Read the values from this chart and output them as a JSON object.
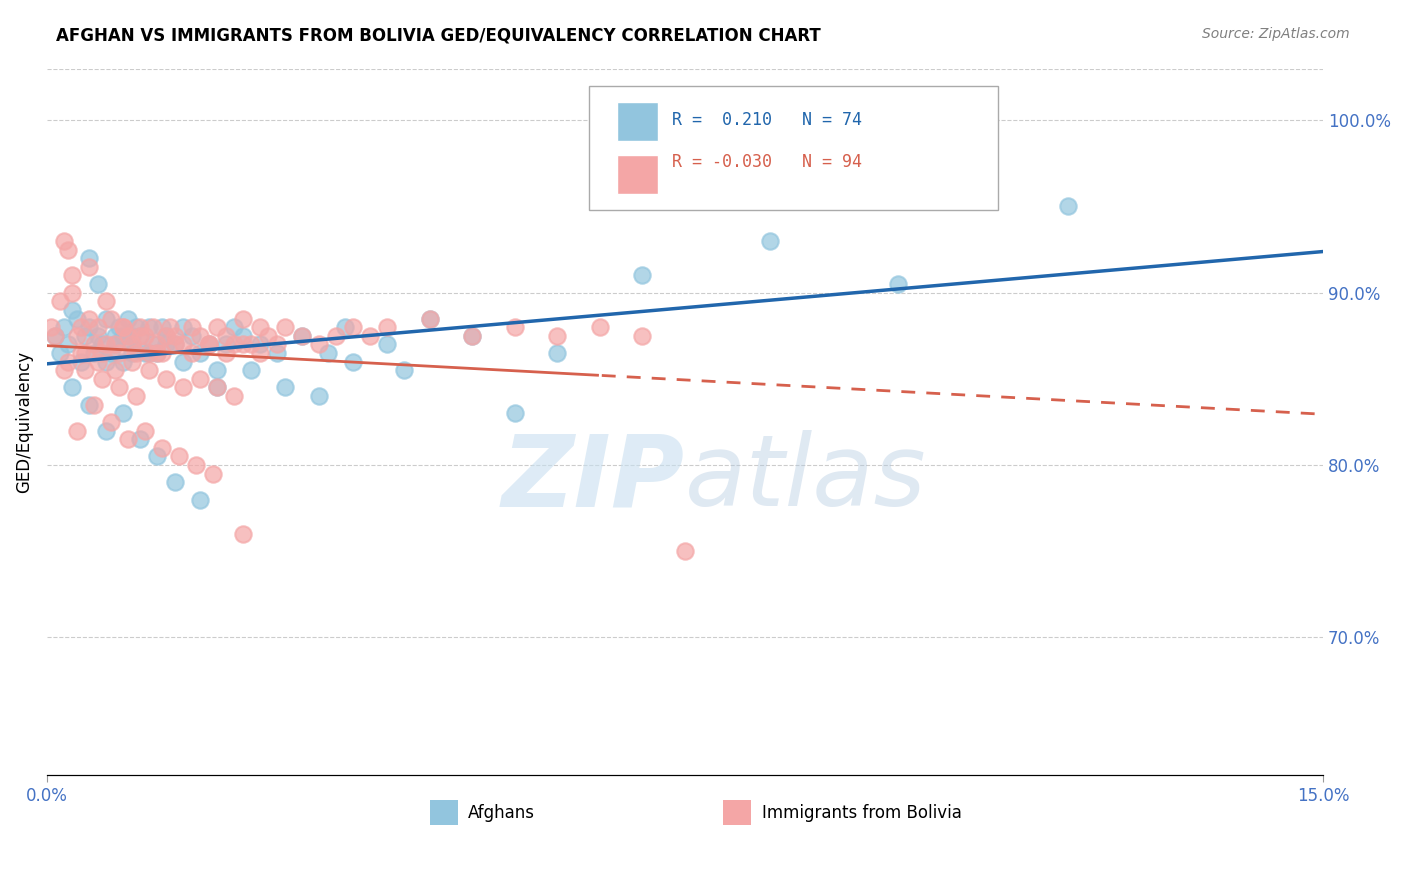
{
  "title": "AFGHAN VS IMMIGRANTS FROM BOLIVIA GED/EQUIVALENCY CORRELATION CHART",
  "source": "Source: ZipAtlas.com",
  "ylabel": "GED/Equivalency",
  "legend_blue_R": "0.210",
  "legend_blue_N": "74",
  "legend_pink_R": "-0.030",
  "legend_pink_N": "94",
  "legend_label_blue": "Afghans",
  "legend_label_pink": "Immigrants from Bolivia",
  "blue_color": "#92c5de",
  "pink_color": "#f4a6a6",
  "blue_line_color": "#2166ac",
  "pink_line_color": "#d6604d",
  "watermark_zip": "ZIP",
  "watermark_atlas": "atlas",
  "xlim": [
    0.0,
    15.0
  ],
  "ylim": [
    62.0,
    103.0
  ],
  "ytick_vals": [
    70,
    80,
    90,
    100
  ],
  "ytick_labels": [
    "70.0%",
    "80.0%",
    "90.0%",
    "100.0%"
  ],
  "blue_scatter_x": [
    0.1,
    0.15,
    0.2,
    0.25,
    0.3,
    0.35,
    0.4,
    0.45,
    0.5,
    0.5,
    0.6,
    0.65,
    0.7,
    0.75,
    0.8,
    0.85,
    0.9,
    0.9,
    0.95,
    1.0,
    1.0,
    1.05,
    1.1,
    1.15,
    1.2,
    1.25,
    1.3,
    1.35,
    1.4,
    1.5,
    1.6,
    1.7,
    1.8,
    1.9,
    2.0,
    2.1,
    2.2,
    2.3,
    2.5,
    2.7,
    3.0,
    3.3,
    3.5,
    4.0,
    4.5,
    5.0,
    6.0,
    7.0,
    8.5,
    10.0,
    12.0,
    0.55,
    0.6,
    0.7,
    0.8,
    1.0,
    1.2,
    1.4,
    1.6,
    2.0,
    2.4,
    2.8,
    3.2,
    3.6,
    4.2,
    5.5,
    0.3,
    0.5,
    0.7,
    0.9,
    1.1,
    1.3,
    1.5,
    1.8
  ],
  "blue_scatter_y": [
    87.5,
    86.5,
    88.0,
    87.0,
    89.0,
    88.5,
    86.0,
    87.5,
    92.0,
    88.0,
    90.5,
    87.0,
    88.5,
    86.5,
    87.5,
    88.0,
    87.5,
    86.0,
    88.5,
    87.0,
    86.5,
    88.0,
    87.5,
    86.5,
    88.0,
    87.0,
    86.5,
    88.0,
    87.5,
    87.0,
    88.0,
    87.5,
    86.5,
    87.0,
    85.5,
    87.0,
    88.0,
    87.5,
    87.0,
    86.5,
    87.5,
    86.5,
    88.0,
    87.0,
    88.5,
    87.5,
    86.5,
    91.0,
    93.0,
    90.5,
    95.0,
    86.5,
    87.5,
    86.0,
    87.0,
    87.5,
    86.5,
    87.0,
    86.0,
    84.5,
    85.5,
    84.5,
    84.0,
    86.0,
    85.5,
    83.0,
    84.5,
    83.5,
    82.0,
    83.0,
    81.5,
    80.5,
    79.0,
    78.0
  ],
  "pink_scatter_x": [
    0.05,
    0.1,
    0.15,
    0.2,
    0.25,
    0.3,
    0.35,
    0.4,
    0.45,
    0.5,
    0.55,
    0.6,
    0.65,
    0.7,
    0.75,
    0.8,
    0.85,
    0.9,
    0.95,
    1.0,
    1.05,
    1.1,
    1.15,
    1.2,
    1.25,
    1.3,
    1.35,
    1.4,
    1.45,
    1.5,
    1.6,
    1.7,
    1.8,
    1.9,
    2.0,
    2.1,
    2.2,
    2.3,
    2.4,
    2.5,
    2.6,
    2.7,
    2.8,
    3.0,
    3.2,
    3.4,
    3.6,
    3.8,
    4.0,
    4.5,
    5.0,
    5.5,
    6.0,
    6.5,
    7.0,
    0.3,
    0.5,
    0.7,
    0.9,
    1.1,
    1.3,
    1.5,
    1.7,
    1.9,
    2.1,
    2.3,
    2.5,
    0.2,
    0.4,
    0.6,
    0.8,
    1.0,
    1.2,
    1.4,
    1.6,
    1.8,
    2.0,
    2.2,
    0.35,
    0.55,
    0.75,
    0.95,
    1.15,
    1.35,
    1.55,
    1.75,
    1.95,
    0.25,
    0.45,
    0.65,
    0.85,
    1.05,
    2.3,
    7.5
  ],
  "pink_scatter_y": [
    88.0,
    87.5,
    89.5,
    93.0,
    92.5,
    91.0,
    87.5,
    88.0,
    86.5,
    88.5,
    87.0,
    88.0,
    86.5,
    87.0,
    88.5,
    87.0,
    86.5,
    88.0,
    87.5,
    87.0,
    86.5,
    88.0,
    87.5,
    86.5,
    88.0,
    87.0,
    86.5,
    87.5,
    88.0,
    87.5,
    87.0,
    88.0,
    87.5,
    87.0,
    88.0,
    87.5,
    87.0,
    88.5,
    87.0,
    88.0,
    87.5,
    87.0,
    88.0,
    87.5,
    87.0,
    87.5,
    88.0,
    87.5,
    88.0,
    88.5,
    87.5,
    88.0,
    87.5,
    88.0,
    87.5,
    90.0,
    91.5,
    89.5,
    88.0,
    87.5,
    86.5,
    87.0,
    86.5,
    87.0,
    86.5,
    87.0,
    86.5,
    85.5,
    86.5,
    86.0,
    85.5,
    86.0,
    85.5,
    85.0,
    84.5,
    85.0,
    84.5,
    84.0,
    82.0,
    83.5,
    82.5,
    81.5,
    82.0,
    81.0,
    80.5,
    80.0,
    79.5,
    86.0,
    85.5,
    85.0,
    84.5,
    84.0,
    76.0,
    75.0
  ]
}
